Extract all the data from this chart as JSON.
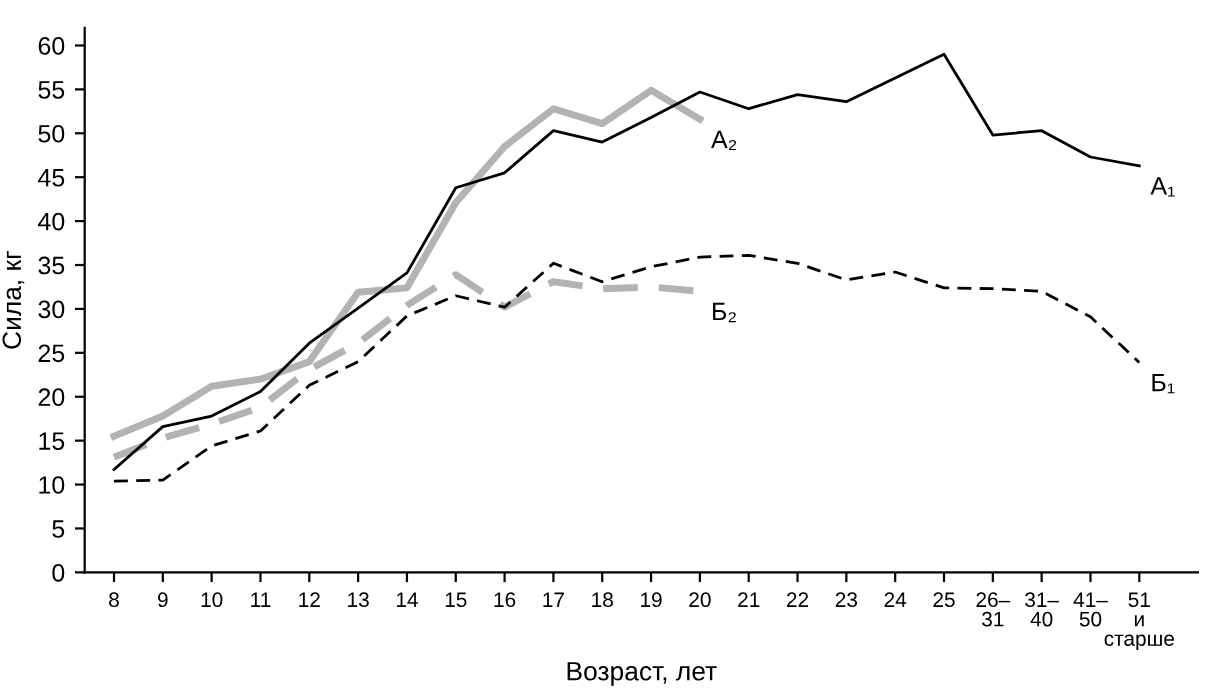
{
  "chart_data": {
    "type": "line",
    "xlabel": "Возраст, лет",
    "ylabel": "Сила, кг",
    "categories": [
      "8",
      "9",
      "10",
      "11",
      "12",
      "13",
      "14",
      "15",
      "16",
      "17",
      "18",
      "19",
      "20",
      "21",
      "22",
      "23",
      "24",
      "25",
      "26–31",
      "31–40",
      "41–50",
      "51 и старше"
    ],
    "ylim": [
      0,
      62
    ],
    "yticks": [
      0,
      5,
      10,
      15,
      20,
      25,
      30,
      35,
      40,
      45,
      50,
      55,
      60
    ],
    "grid": false,
    "legend": false,
    "marker": "none",
    "series": [
      {
        "name": "А₁",
        "color": "#000000",
        "line_style": "solid",
        "values": [
          11.7,
          16.6,
          17.8,
          20.6,
          26.1,
          30.1,
          34.1,
          43.8,
          45.5,
          50.3,
          49.0,
          51.8,
          54.7,
          52.8,
          54.4,
          53.6,
          56.3,
          59.0,
          49.8,
          50.3,
          47.3,
          46.3
        ]
      },
      {
        "name": "А₂",
        "color": "#b3b3b3",
        "line_style": "solid",
        "values": [
          15.5,
          17.8,
          21.2,
          22.0,
          24.0,
          31.9,
          32.4,
          42.1,
          48.5,
          52.8,
          51.1,
          54.9,
          51.6,
          null,
          null,
          null,
          null,
          null,
          null,
          null,
          null,
          null
        ]
      },
      {
        "name": "Б₁",
        "color": "#000000",
        "line_style": "dashed",
        "values": [
          10.4,
          10.5,
          14.4,
          16.1,
          21.3,
          24.0,
          29.2,
          31.5,
          30.2,
          35.2,
          33.1,
          34.8,
          35.9,
          36.1,
          35.2,
          33.3,
          34.2,
          32.4,
          32.3,
          32.0,
          29.1,
          23.9
        ]
      },
      {
        "name": "Б₂",
        "color": "#b3b3b3",
        "line_style": "dashed",
        "values": [
          13.1,
          15.3,
          16.9,
          18.8,
          23.1,
          26.1,
          30.4,
          33.9,
          30.2,
          33.1,
          32.3,
          32.5,
          32.0,
          null,
          null,
          null,
          null,
          null,
          null,
          null,
          null,
          null
        ]
      }
    ]
  }
}
